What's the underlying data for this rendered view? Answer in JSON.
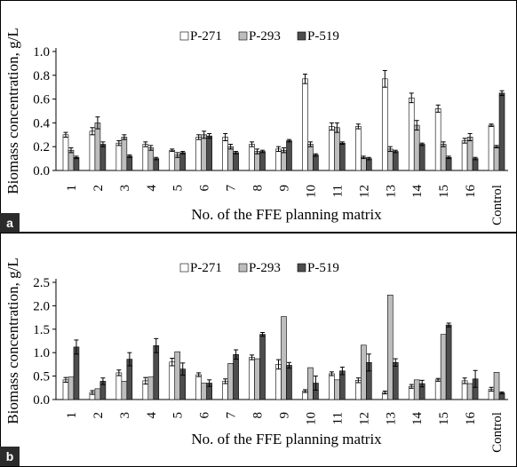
{
  "chart_data": [
    {
      "type": "bar",
      "panel_label": "a",
      "ylabel": "Biomass concentration, g/L",
      "xlabel": "No. of the FFE planning matrix",
      "ylim": [
        0,
        1.0
      ],
      "yticks": [
        "0.0",
        "0.2",
        "0.4",
        "0.6",
        "0.8",
        "1.0"
      ],
      "ytick_values": [
        0,
        0.2,
        0.4,
        0.6,
        0.8,
        1.0
      ],
      "grid": false,
      "legend_position": "top-center",
      "categories": [
        "1",
        "2",
        "3",
        "4",
        "5",
        "6",
        "7",
        "8",
        "9",
        "10",
        "11",
        "12",
        "13",
        "14",
        "15",
        "16",
        "Control"
      ],
      "series": [
        {
          "name": "P-271",
          "color": "#ffffff",
          "values": [
            0.3,
            0.33,
            0.23,
            0.22,
            0.17,
            0.28,
            0.28,
            0.22,
            0.18,
            0.77,
            0.37,
            0.37,
            0.77,
            0.61,
            0.52,
            0.25,
            0.38
          ],
          "errors": [
            0.02,
            0.03,
            0.02,
            0.02,
            0.01,
            0.02,
            0.03,
            0.02,
            0.02,
            0.04,
            0.03,
            0.02,
            0.07,
            0.04,
            0.03,
            0.02,
            0.01
          ]
        },
        {
          "name": "P-293",
          "color": "#bdbdbd",
          "values": [
            0.17,
            0.4,
            0.28,
            0.19,
            0.13,
            0.3,
            0.2,
            0.16,
            0.17,
            0.22,
            0.36,
            0.11,
            0.18,
            0.38,
            0.22,
            0.28,
            0.2
          ],
          "errors": [
            0.02,
            0.05,
            0.02,
            0.02,
            0.02,
            0.03,
            0.02,
            0.02,
            0.02,
            0.02,
            0.04,
            0.01,
            0.02,
            0.04,
            0.02,
            0.03,
            0.01
          ]
        },
        {
          "name": "P-519",
          "color": "#4d4d4d",
          "values": [
            0.11,
            0.22,
            0.12,
            0.1,
            0.15,
            0.29,
            0.15,
            0.16,
            0.25,
            0.13,
            0.23,
            0.1,
            0.16,
            0.22,
            0.11,
            0.1,
            0.65
          ],
          "errors": [
            0.01,
            0.02,
            0.01,
            0.01,
            0.01,
            0.02,
            0.01,
            0.01,
            0.01,
            0.01,
            0.01,
            0.01,
            0.01,
            0.01,
            0.01,
            0.01,
            0.02
          ]
        }
      ]
    },
    {
      "type": "bar",
      "panel_label": "b",
      "ylabel": "Biomass concentration, g/L",
      "xlabel": "No. of the FFE planning matrix",
      "ylim": [
        0,
        2.5
      ],
      "yticks": [
        "0.0",
        "0.5",
        "1.0",
        "1.5",
        "2.0",
        "2.5"
      ],
      "ytick_values": [
        0,
        0.5,
        1.0,
        1.5,
        2.0,
        2.5
      ],
      "grid": false,
      "legend_position": "top-center",
      "categories": [
        "1",
        "2",
        "3",
        "4",
        "5",
        "6",
        "7",
        "8",
        "9",
        "10",
        "11",
        "12",
        "13",
        "14",
        "15",
        "16",
        "Control"
      ],
      "series": [
        {
          "name": "P-271",
          "color": "#ffffff",
          "values": [
            0.42,
            0.15,
            0.57,
            0.4,
            0.8,
            0.53,
            0.39,
            0.9,
            0.75,
            0.18,
            0.55,
            0.41,
            0.15,
            0.28,
            0.42,
            0.4,
            0.22
          ],
          "errors": [
            0.05,
            0.04,
            0.06,
            0.07,
            0.08,
            0.04,
            0.05,
            0.05,
            0.1,
            0.03,
            0.04,
            0.05,
            0.03,
            0.04,
            0.03,
            0.06,
            0.04
          ]
        },
        {
          "name": "P-293",
          "color": "#bdbdbd",
          "values": [
            0.48,
            0.23,
            0.39,
            0.48,
            1.02,
            0.35,
            0.77,
            0.87,
            1.77,
            0.68,
            0.42,
            1.16,
            2.23,
            0.42,
            1.39,
            0.34,
            0.58
          ]
        },
        {
          "name": "P-519",
          "color": "#4d4d4d",
          "values": [
            1.12,
            0.39,
            0.86,
            1.15,
            0.65,
            0.35,
            0.96,
            1.39,
            0.73,
            0.35,
            0.61,
            0.79,
            0.79,
            0.34,
            1.59,
            0.44,
            0.14
          ],
          "errors": [
            0.15,
            0.07,
            0.14,
            0.15,
            0.13,
            0.07,
            0.1,
            0.04,
            0.06,
            0.15,
            0.08,
            0.18,
            0.08,
            0.07,
            0.04,
            0.18,
            0.02
          ]
        }
      ]
    }
  ]
}
